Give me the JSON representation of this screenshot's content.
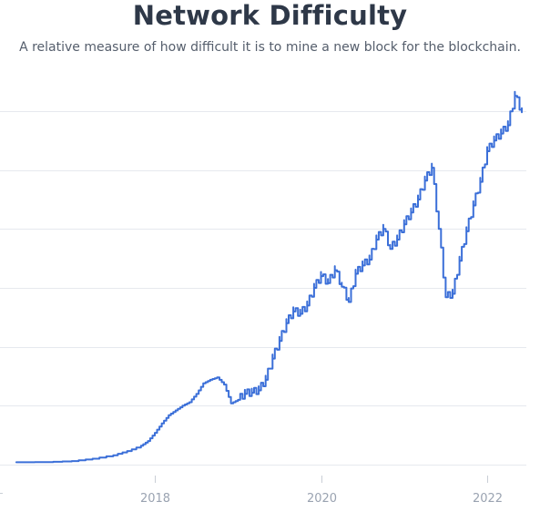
{
  "chart_data": {
    "type": "line",
    "title": "Network Difficulty",
    "subtitle": "A relative measure of how difficult it is to mine a new block for the blockchain.",
    "xlabel": "",
    "ylabel": "",
    "x_ticks": [
      "2018",
      "2020",
      "2022"
    ],
    "x_range": [
      "2016-05",
      "2022-06"
    ],
    "y_unit": "T",
    "y_range": [
      0,
      30
    ],
    "grid": "horizontal",
    "series": [
      {
        "color": "#3b6fd8",
        "points": [
          [
            "2016-05",
            0.2
          ],
          [
            "2016-09",
            0.21
          ],
          [
            "2017-01",
            0.3
          ],
          [
            "2017-04",
            0.5
          ],
          [
            "2017-07",
            0.8
          ],
          [
            "2017-09",
            1.15
          ],
          [
            "2017-11",
            1.6
          ],
          [
            "2017-12",
            2.0
          ],
          [
            "2018-01",
            2.7
          ],
          [
            "2018-02",
            3.5
          ],
          [
            "2018-03",
            4.2
          ],
          [
            "2018-04",
            4.6
          ],
          [
            "2018-05",
            5.0
          ],
          [
            "2018-06",
            5.3
          ],
          [
            "2018-07",
            6.0
          ],
          [
            "2018-08",
            6.9
          ],
          [
            "2018-09",
            7.2
          ],
          [
            "2018-10",
            7.4
          ],
          [
            "2018-11",
            6.8
          ],
          [
            "2018-12",
            5.2
          ],
          [
            "2019-01",
            5.5
          ],
          [
            "2019-02",
            6.0
          ],
          [
            "2019-03",
            6.1
          ],
          [
            "2019-04",
            6.3
          ],
          [
            "2019-05",
            7.2
          ],
          [
            "2019-06",
            9.0
          ],
          [
            "2019-07",
            10.5
          ],
          [
            "2019-08",
            12.0
          ],
          [
            "2019-09",
            13.0
          ],
          [
            "2019-10",
            12.8
          ],
          [
            "2019-11",
            13.5
          ],
          [
            "2019-12",
            15.0
          ],
          [
            "2020-01",
            16.0
          ],
          [
            "2020-02",
            15.4
          ],
          [
            "2020-03",
            16.5
          ],
          [
            "2020-04",
            15.1
          ],
          [
            "2020-05",
            13.8
          ],
          [
            "2020-06",
            16.2
          ],
          [
            "2020-07",
            16.9
          ],
          [
            "2020-08",
            17.4
          ],
          [
            "2020-09",
            19.1
          ],
          [
            "2020-10",
            20.0
          ],
          [
            "2020-11",
            18.3
          ],
          [
            "2020-12",
            19.1
          ],
          [
            "2021-01",
            20.4
          ],
          [
            "2021-02",
            21.4
          ],
          [
            "2021-03",
            22.5
          ],
          [
            "2021-04",
            24.1
          ],
          [
            "2021-05",
            25.2
          ],
          [
            "2021-06",
            20.0
          ],
          [
            "2021-07",
            14.2
          ],
          [
            "2021-08",
            14.5
          ],
          [
            "2021-09",
            17.3
          ],
          [
            "2021-10",
            19.8
          ],
          [
            "2021-11",
            22.0
          ],
          [
            "2021-12",
            24.0
          ],
          [
            "2022-01",
            26.6
          ],
          [
            "2022-02",
            27.5
          ],
          [
            "2022-03",
            28.1
          ],
          [
            "2022-04",
            28.8
          ],
          [
            "2022-05",
            31.3
          ],
          [
            "2022-06",
            29.9
          ]
        ]
      }
    ]
  }
}
